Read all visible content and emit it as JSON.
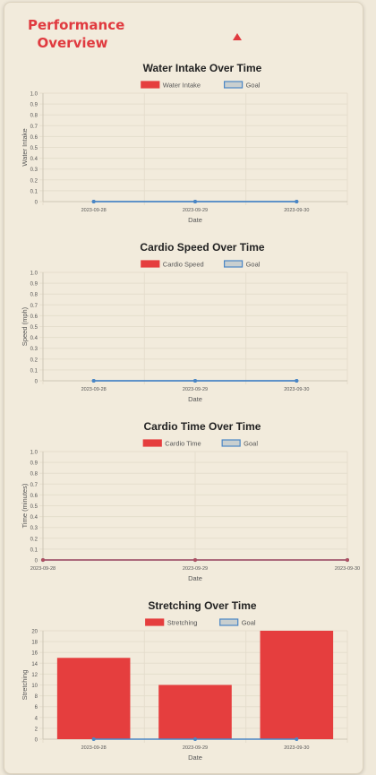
{
  "header": {
    "title": "Performance Overview",
    "toggle_icon": "triangle-up-icon"
  },
  "colors": {
    "accent": "#e03a3f",
    "bar_fill": "#e53e3e",
    "line": "#4a86c5",
    "goal_fill": "#c9cfcf",
    "goal_border": "#4a86c5",
    "grid": "#e5decd",
    "axis_text": "#555555"
  },
  "chart_data": [
    {
      "type": "line",
      "title": "Water Intake Over Time",
      "xlabel": "Date",
      "ylabel": "Water Intake",
      "x": [
        "2023-09-28",
        "2023-09-29",
        "2023-09-30"
      ],
      "series": [
        {
          "name": "Water Intake",
          "values": [
            0,
            0,
            0
          ]
        },
        {
          "name": "Goal",
          "values": [
            0,
            0,
            0
          ]
        }
      ],
      "ylim": [
        0,
        1
      ],
      "yticks": [
        "0",
        "0.1",
        "0.2",
        "0.3",
        "0.4",
        "0.5",
        "0.6",
        "0.7",
        "0.8",
        "0.9",
        "1.0"
      ],
      "grid": true,
      "legend": "top"
    },
    {
      "type": "line",
      "title": "Cardio Speed Over Time",
      "xlabel": "Date",
      "ylabel": "Speed (mph)",
      "x": [
        "2023-09-28",
        "2023-09-29",
        "2023-09-30"
      ],
      "series": [
        {
          "name": "Cardio Speed",
          "values": [
            0,
            0,
            0
          ]
        },
        {
          "name": "Goal",
          "values": [
            0,
            0,
            0
          ]
        }
      ],
      "ylim": [
        0,
        1
      ],
      "yticks": [
        "0",
        "0.1",
        "0.2",
        "0.3",
        "0.4",
        "0.5",
        "0.6",
        "0.7",
        "0.8",
        "0.9",
        "1.0"
      ],
      "grid": true,
      "legend": "top"
    },
    {
      "type": "line",
      "title": "Cardio Time Over Time",
      "xlabel": "Date",
      "ylabel": "Time (minutes)",
      "x": [
        "2023-09-28",
        "2023-09-29",
        "2023-09-30"
      ],
      "series": [
        {
          "name": "Cardio Time",
          "values": [
            0,
            0,
            0
          ]
        },
        {
          "name": "Goal",
          "values": [
            0,
            0,
            0
          ]
        }
      ],
      "ylim": [
        0,
        1
      ],
      "yticks": [
        "0",
        "0.1",
        "0.2",
        "0.3",
        "0.4",
        "0.5",
        "0.6",
        "0.7",
        "0.8",
        "0.9",
        "1.0"
      ],
      "grid": true,
      "legend": "top"
    },
    {
      "type": "bar",
      "title": "Stretching Over Time",
      "xlabel": "Date",
      "ylabel": "Stretching",
      "categories": [
        "2023-09-28",
        "2023-09-29",
        "2023-09-30"
      ],
      "series": [
        {
          "name": "Stretching",
          "values": [
            15,
            10,
            20
          ]
        },
        {
          "name": "Goal",
          "values": [
            0,
            0,
            0
          ]
        }
      ],
      "ylim": [
        0,
        20
      ],
      "yticks": [
        "0",
        "2",
        "4",
        "6",
        "8",
        "10",
        "12",
        "14",
        "16",
        "18",
        "20"
      ],
      "grid": true,
      "legend": "top"
    }
  ]
}
